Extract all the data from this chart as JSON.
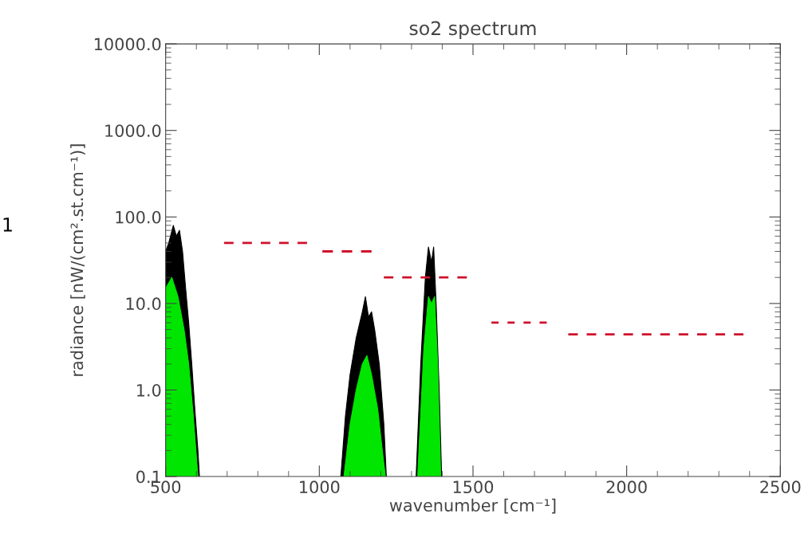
{
  "chart_data": {
    "type": "area",
    "title": "so2 spectrum",
    "xlabel": "wavenumber [cm⁻¹]",
    "ylabel": "radiance [nW/(cm².st.cm⁻¹)]",
    "log": "y",
    "xlim": [
      500,
      2500
    ],
    "ylim": [
      0.1,
      10000
    ],
    "xticks": [
      500,
      1000,
      1500,
      2000,
      2500
    ],
    "yticks": [
      {
        "value": 0.1,
        "label": "0.1"
      },
      {
        "value": 1,
        "label": "1.0"
      },
      {
        "value": 10,
        "label": "10.0"
      },
      {
        "value": 100,
        "label": "100.0"
      },
      {
        "value": 1000,
        "label": "1000.0"
      },
      {
        "value": 10000,
        "label": "10000.0"
      }
    ],
    "grid": false,
    "annotations": [
      "1"
    ],
    "series": [
      {
        "color": "#000000",
        "x": [
          500,
          510,
          525,
          535,
          545,
          555,
          565,
          575,
          585,
          595,
          605,
          610
        ],
        "values": [
          40,
          50,
          80,
          60,
          70,
          40,
          15,
          6,
          2,
          0.6,
          0.2,
          0.1
        ]
      },
      {
        "color": "#00e600",
        "x": [
          500,
          520,
          540,
          560,
          575,
          590,
          605
        ],
        "values": [
          15,
          20,
          12,
          5,
          2,
          0.5,
          0.1
        ]
      },
      {
        "color": "#000000",
        "x": [
          1070,
          1085,
          1100,
          1120,
          1140,
          1150,
          1160,
          1170,
          1180,
          1195,
          1210,
          1218
        ],
        "values": [
          0.1,
          0.5,
          1.5,
          4,
          8,
          12,
          7,
          8,
          5,
          2,
          0.4,
          0.1
        ]
      },
      {
        "color": "#00e600",
        "x": [
          1080,
          1100,
          1120,
          1140,
          1155,
          1170,
          1190,
          1205,
          1215
        ],
        "values": [
          0.1,
          0.4,
          1,
          2,
          2.5,
          1.5,
          0.6,
          0.2,
          0.1
        ]
      },
      {
        "color": "#000000",
        "x": [
          1315,
          1330,
          1345,
          1355,
          1365,
          1372,
          1380,
          1390,
          1398
        ],
        "values": [
          0.1,
          2,
          20,
          45,
          30,
          45,
          10,
          1,
          0.1
        ]
      },
      {
        "color": "#00e600",
        "x": [
          1320,
          1340,
          1355,
          1365,
          1375,
          1385,
          1395
        ],
        "values": [
          0.1,
          3,
          12,
          10,
          12,
          2,
          0.1
        ]
      },
      {
        "type": "line",
        "line_style": "dashed",
        "color": "#d0102a",
        "x": [
          690,
          960
        ],
        "values": [
          50,
          50
        ]
      },
      {
        "type": "line",
        "line_style": "dashed",
        "color": "#d0102a",
        "x": [
          1010,
          1170
        ],
        "values": [
          40,
          40
        ]
      },
      {
        "type": "line",
        "line_style": "dashed",
        "color": "#d0102a",
        "x": [
          1210,
          1480
        ],
        "values": [
          20,
          20
        ]
      },
      {
        "type": "line",
        "line_style": "dashed",
        "color": "#d0102a",
        "x": [
          1560,
          1740
        ],
        "values": [
          6,
          6
        ]
      },
      {
        "type": "line",
        "line_style": "dashed",
        "color": "#d0102a",
        "x": [
          1810,
          2380
        ],
        "values": [
          4.4,
          4.4
        ]
      }
    ]
  }
}
